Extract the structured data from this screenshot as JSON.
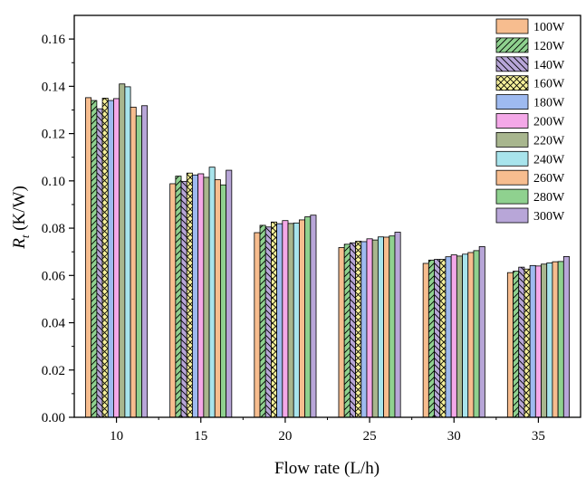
{
  "chart_data": {
    "type": "bar",
    "title": "",
    "xlabel": "Flow rate (L/h)",
    "ylabel_main": "R",
    "ylabel_sub": "t",
    "ylabel_rest": " (K/W)",
    "ylim": [
      0,
      0.17
    ],
    "yticks": [
      "0.00",
      "0.02",
      "0.04",
      "0.06",
      "0.08",
      "0.10",
      "0.12",
      "0.14",
      "0.16"
    ],
    "categories": [
      "10",
      "15",
      "20",
      "25",
      "30",
      "35"
    ],
    "legend_position": "top-right",
    "series": [
      {
        "name": "100W",
        "color": "#f7bd8f",
        "pattern": "none",
        "values": [
          0.1352,
          0.0988,
          0.0781,
          0.0718,
          0.0651,
          0.0612
        ]
      },
      {
        "name": "120W",
        "color": "#8fd18f",
        "pattern": "diag",
        "values": [
          0.134,
          0.102,
          0.0812,
          0.0732,
          0.0665,
          0.0618
        ]
      },
      {
        "name": "140W",
        "color": "#b8a6d8",
        "pattern": "anti",
        "values": [
          0.1305,
          0.0998,
          0.0805,
          0.0738,
          0.0668,
          0.0635
        ]
      },
      {
        "name": "160W",
        "color": "#f5f09a",
        "pattern": "cross",
        "values": [
          0.135,
          0.1033,
          0.0826,
          0.0745,
          0.0668,
          0.0627
        ]
      },
      {
        "name": "180W",
        "color": "#9ebaf0",
        "pattern": "none",
        "values": [
          0.134,
          0.1025,
          0.0819,
          0.0743,
          0.0679,
          0.0642
        ]
      },
      {
        "name": "200W",
        "color": "#f4a8e8",
        "pattern": "none",
        "values": [
          0.1348,
          0.103,
          0.0832,
          0.0755,
          0.0687,
          0.064
        ]
      },
      {
        "name": "220W",
        "color": "#a8b68e",
        "pattern": "none",
        "values": [
          0.141,
          0.1015,
          0.082,
          0.075,
          0.0682,
          0.0648
        ]
      },
      {
        "name": "240W",
        "color": "#a8e4ec",
        "pattern": "none",
        "values": [
          0.1398,
          0.1058,
          0.0822,
          0.0763,
          0.069,
          0.0653
        ]
      },
      {
        "name": "260W",
        "color": "#f7bd8f",
        "pattern": "none",
        "values": [
          0.1312,
          0.1005,
          0.0835,
          0.0762,
          0.0697,
          0.0658
        ]
      },
      {
        "name": "280W",
        "color": "#8fd18f",
        "pattern": "none",
        "values": [
          0.1275,
          0.0983,
          0.0848,
          0.0767,
          0.0705,
          0.0659
        ]
      },
      {
        "name": "300W",
        "color": "#b8a6d8",
        "pattern": "none",
        "values": [
          0.1318,
          0.1045,
          0.0855,
          0.0783,
          0.0722,
          0.068
        ]
      }
    ]
  }
}
